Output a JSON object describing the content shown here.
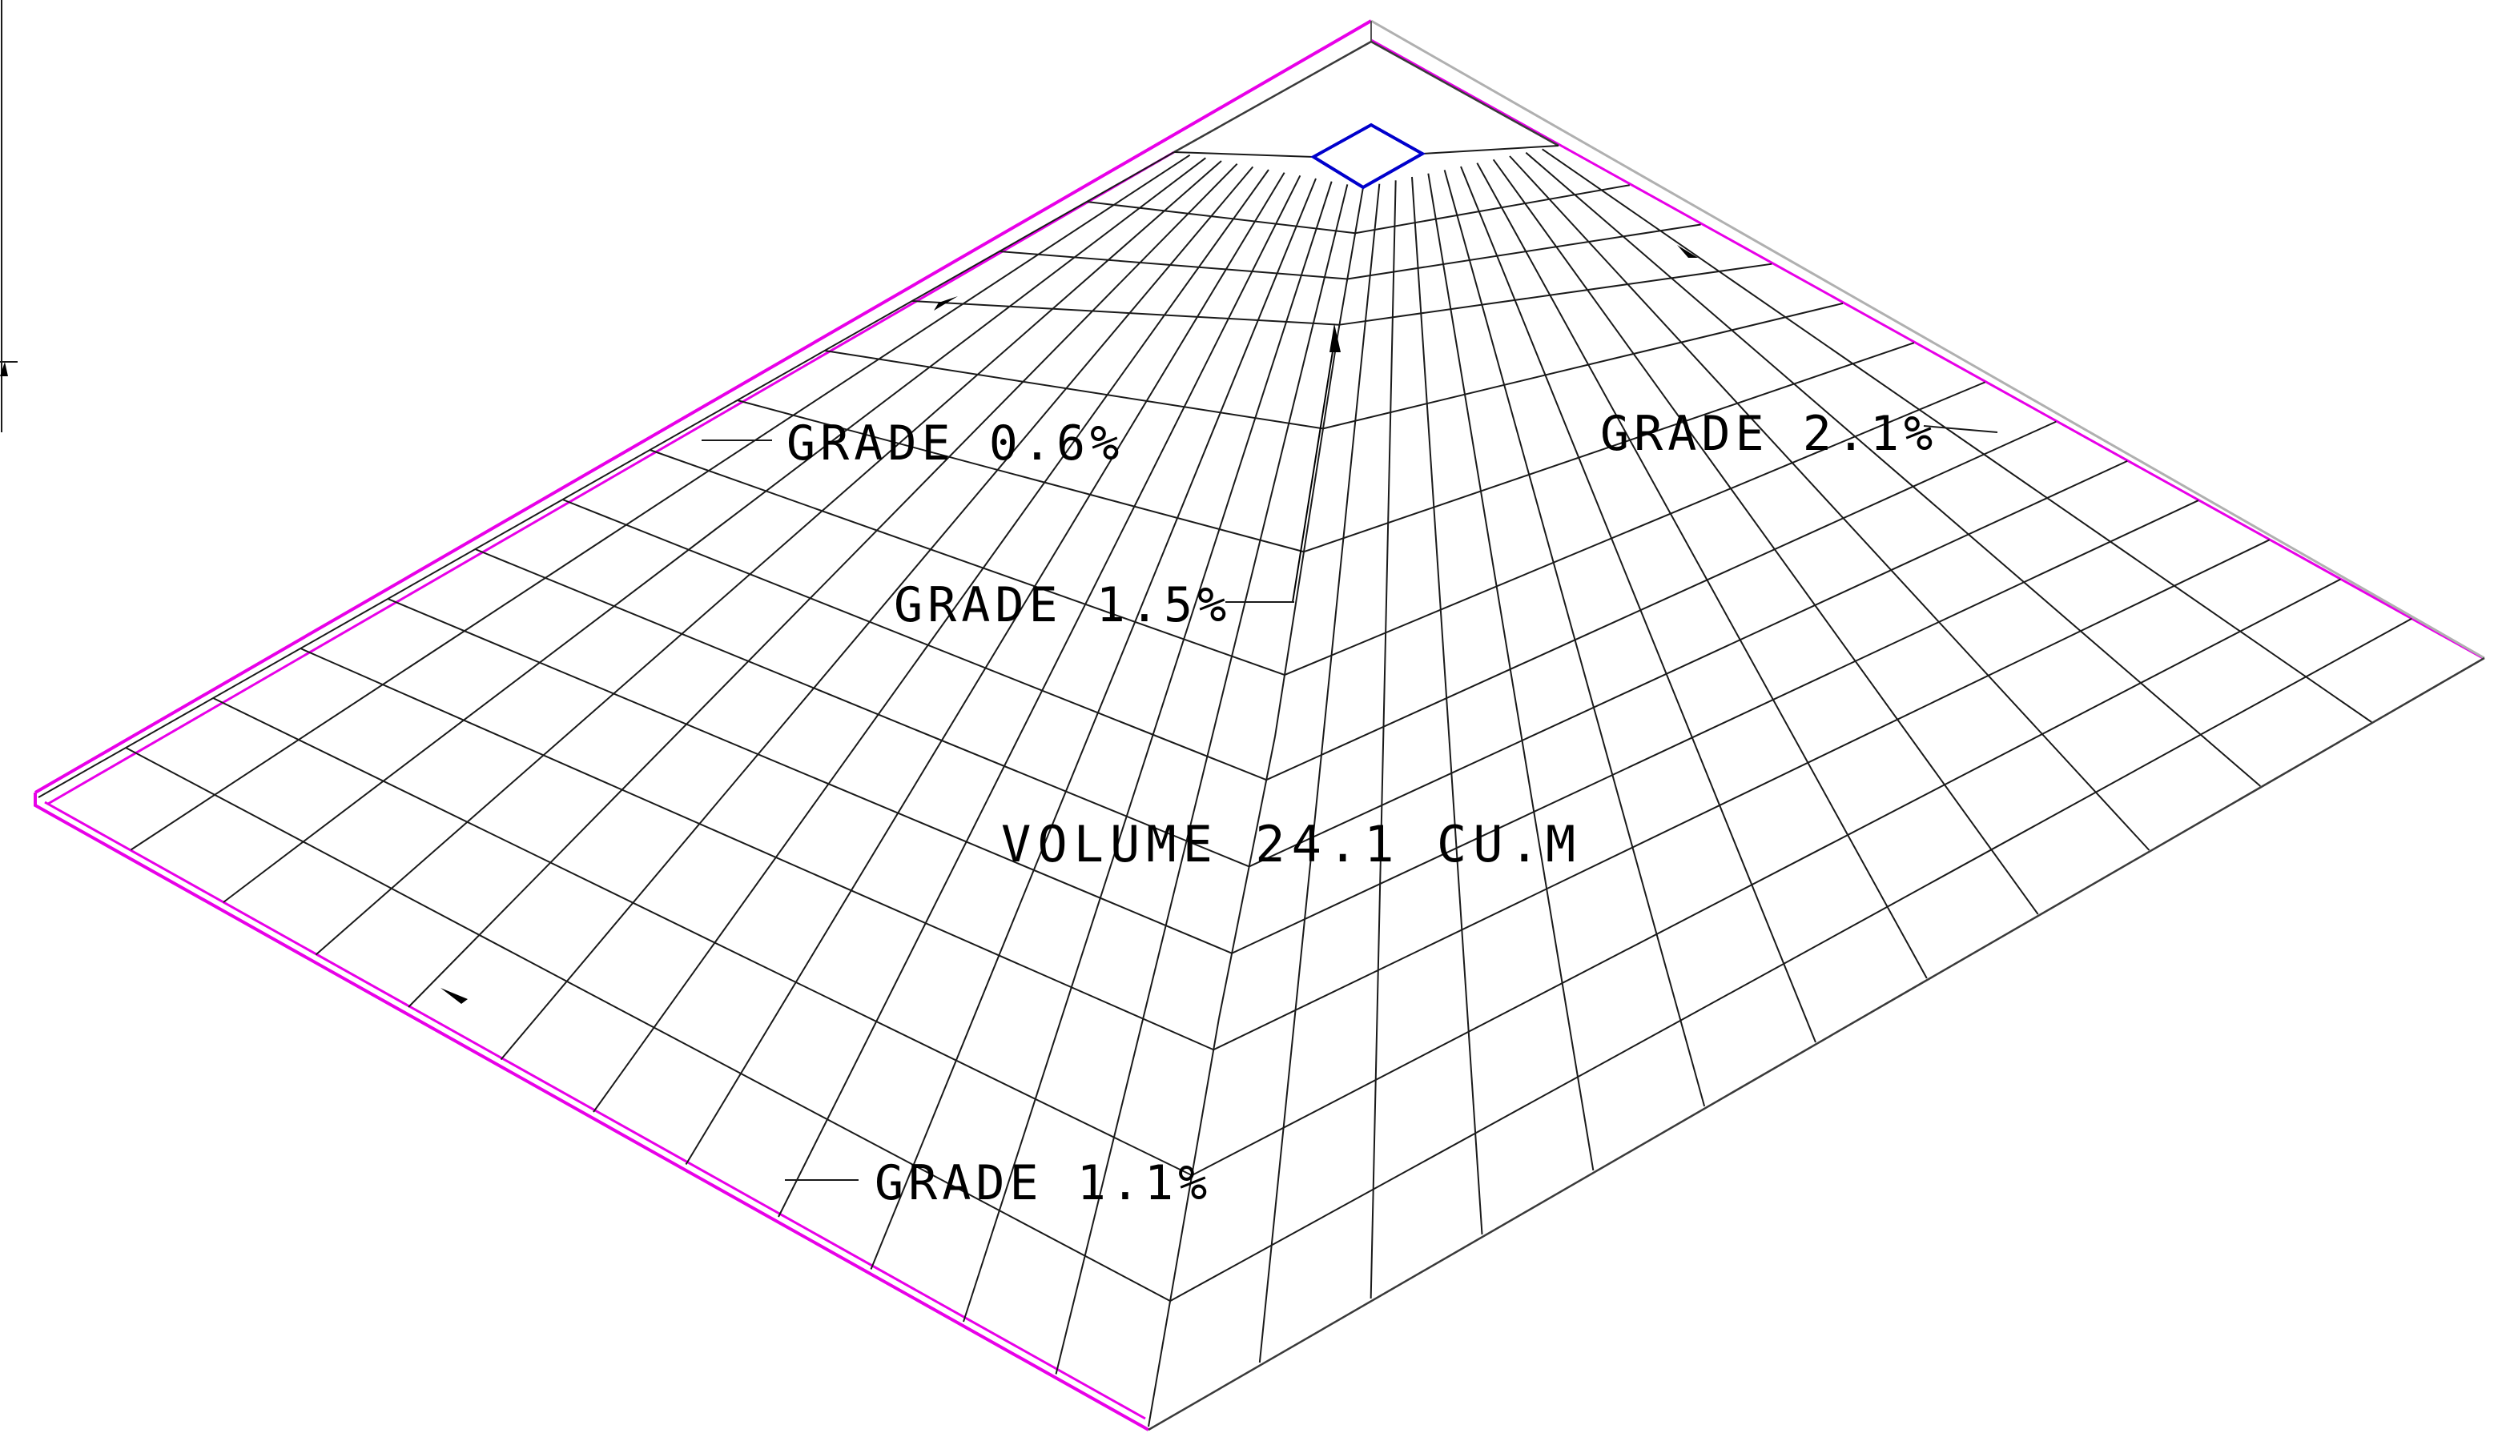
{
  "labels": {
    "grade_top_left": "GRADE 0.6%",
    "grade_top_right": "GRADE 2.1%",
    "grade_center": "GRADE 1.5%",
    "grade_bottom": "GRADE 1.1%",
    "volume": "VOLUME 24.1 CU.M"
  },
  "colors": {
    "outline": "#e800e8",
    "drain": "#0000cc",
    "grid": "#1a1a1a",
    "edge_gray": "#b0b0b0"
  }
}
